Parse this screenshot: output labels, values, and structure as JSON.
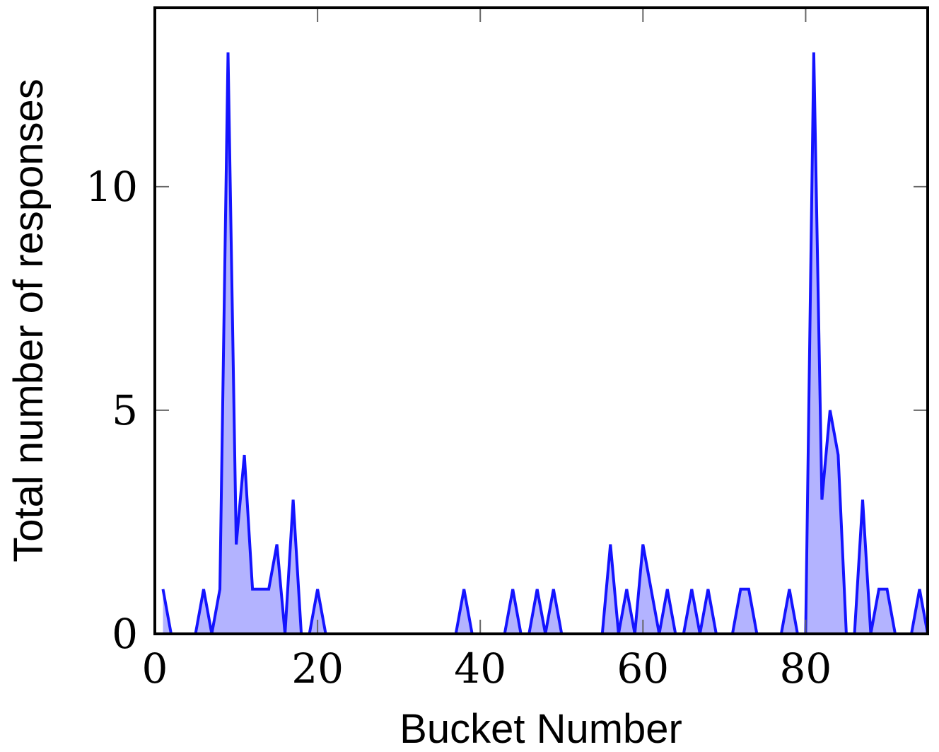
{
  "chart_data": {
    "type": "area",
    "title": "",
    "xlabel": "Bucket Number",
    "ylabel": "Total number of responses",
    "xlim": [
      0,
      95
    ],
    "ylim": [
      0,
      14
    ],
    "xticks": [
      0,
      20,
      40,
      60,
      80
    ],
    "yticks": [
      0,
      5,
      10
    ],
    "grid": false,
    "legend": "none",
    "line_color": "#1414ff",
    "fill_color": "#b3b3ff",
    "x": [
      1,
      2,
      3,
      4,
      5,
      6,
      7,
      8,
      9,
      10,
      11,
      12,
      13,
      14,
      15,
      16,
      17,
      18,
      19,
      20,
      21,
      22,
      23,
      24,
      25,
      26,
      27,
      28,
      29,
      30,
      31,
      32,
      33,
      34,
      35,
      36,
      37,
      38,
      39,
      40,
      41,
      42,
      43,
      44,
      45,
      46,
      47,
      48,
      49,
      50,
      51,
      52,
      53,
      54,
      55,
      56,
      57,
      58,
      59,
      60,
      61,
      62,
      63,
      64,
      65,
      66,
      67,
      68,
      69,
      70,
      71,
      72,
      73,
      74,
      75,
      76,
      77,
      78,
      79,
      80,
      81,
      82,
      83,
      84,
      85,
      86,
      87,
      88,
      89,
      90,
      91,
      92,
      93,
      94,
      95
    ],
    "values": [
      1,
      0,
      0,
      0,
      0,
      1,
      0,
      1,
      13,
      2,
      4,
      1,
      1,
      1,
      2,
      0,
      3,
      0,
      0,
      1,
      0,
      0,
      0,
      0,
      0,
      0,
      0,
      0,
      0,
      0,
      0,
      0,
      0,
      0,
      0,
      0,
      0,
      1,
      0,
      0,
      0,
      0,
      0,
      1,
      0,
      0,
      1,
      0,
      1,
      0,
      0,
      0,
      0,
      0,
      0,
      2,
      0,
      1,
      0,
      2,
      1,
      0,
      1,
      0,
      0,
      1,
      0,
      1,
      0,
      0,
      0,
      1,
      1,
      0,
      0,
      0,
      0,
      1,
      0,
      0,
      13,
      3,
      5,
      4,
      0,
      0,
      3,
      0,
      1,
      1,
      0,
      0,
      0,
      1,
      0
    ]
  }
}
